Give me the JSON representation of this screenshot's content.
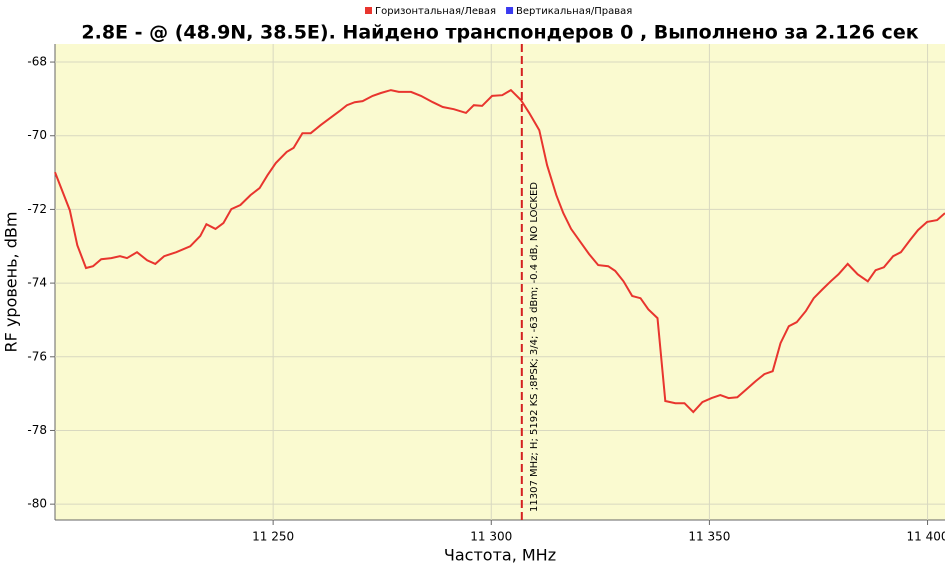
{
  "chart_data": {
    "type": "line",
    "title": "2.8E -  @  (48.9N, 38.5E). Найдено транспондеров 0 , Выполнено за 2.126 сек",
    "x_label": "Частота, MHz",
    "y_label": "RF уровень, dBm",
    "x": [
      11200,
      11203.4,
      11205.1,
      11207.1,
      11208.7,
      11210.6,
      11212.9,
      11214.9,
      11216.5,
      11218.8,
      11221.1,
      11223,
      11225,
      11227.8,
      11231,
      11233.3,
      11234.7,
      11236.8,
      11238.6,
      11240.4,
      11242.5,
      11244.8,
      11246.9,
      11248.7,
      11250.6,
      11253.1,
      11254.7,
      11256.7,
      11258.6,
      11260.9,
      11263.4,
      11265.2,
      11266.9,
      11268.7,
      11270.5,
      11272.8,
      11274.7,
      11277,
      11278.8,
      11281.6,
      11283.9,
      11286.6,
      11288.9,
      11291.4,
      11294.2,
      11296,
      11297.9,
      11300.2,
      11302.5,
      11304.5,
      11306.8,
      11308.7,
      11311,
      11312.8,
      11314.9,
      11316.5,
      11318.3,
      11320.6,
      11322.4,
      11324.5,
      11326.8,
      11328.4,
      11330.3,
      11332.3,
      11334.2,
      11336,
      11338.1,
      11339.9,
      11342.2,
      11344.3,
      11346.3,
      11348.4,
      11350.5,
      11352.5,
      11354.4,
      11356.4,
      11358.5,
      11360.6,
      11362.6,
      11364.5,
      11366.3,
      11368.2,
      11370,
      11372.1,
      11373.9,
      11376,
      11377.8,
      11379.6,
      11381.7,
      11384,
      11386.3,
      11388.1,
      11390,
      11392.1,
      11393.9,
      11396,
      11397.8,
      11399.9,
      11402.2,
      11404
    ],
    "series": [
      {
        "name": "Горизонтальная/Левая",
        "color": "#e8352e",
        "values": [
          -70.99,
          -72.02,
          -72.97,
          -73.59,
          -73.54,
          -73.35,
          -73.32,
          -73.27,
          -73.32,
          -73.16,
          -73.38,
          -73.48,
          -73.27,
          -73.16,
          -73.0,
          -72.72,
          -72.4,
          -72.53,
          -72.37,
          -71.99,
          -71.88,
          -71.61,
          -71.42,
          -71.07,
          -70.74,
          -70.44,
          -70.33,
          -69.93,
          -69.93,
          -69.71,
          -69.49,
          -69.33,
          -69.17,
          -69.09,
          -69.06,
          -68.92,
          -68.84,
          -68.76,
          -68.81,
          -68.81,
          -68.92,
          -69.09,
          -69.22,
          -69.28,
          -69.38,
          -69.17,
          -69.19,
          -68.92,
          -68.9,
          -68.76,
          -69.03,
          -69.38,
          -69.85,
          -70.8,
          -71.61,
          -72.1,
          -72.53,
          -72.91,
          -73.21,
          -73.51,
          -73.54,
          -73.67,
          -73.95,
          -74.35,
          -74.41,
          -74.71,
          -74.95,
          -77.2,
          -77.26,
          -77.26,
          -77.5,
          -77.23,
          -77.12,
          -77.04,
          -77.12,
          -77.1,
          -76.88,
          -76.66,
          -76.47,
          -76.39,
          -75.63,
          -75.17,
          -75.06,
          -74.76,
          -74.41,
          -74.16,
          -73.95,
          -73.76,
          -73.48,
          -73.76,
          -73.95,
          -73.65,
          -73.57,
          -73.27,
          -73.16,
          -72.83,
          -72.56,
          -72.34,
          -72.29,
          -72.1
        ]
      },
      {
        "name": "Вертикальная/Правая",
        "color": "#3a3af0"
      }
    ],
    "xlim": [
      11200,
      11404
    ],
    "ylim": [
      -80.43,
      -67.51
    ],
    "xticks": [
      {
        "value": 11250,
        "label": "11 250"
      },
      {
        "value": 11300,
        "label": "11 300"
      },
      {
        "value": 11350,
        "label": "11 350"
      },
      {
        "value": 11400,
        "label": "11 400"
      }
    ],
    "yticks": [
      -68,
      -70,
      -72,
      -74,
      -76,
      -78,
      -80
    ],
    "grid": true,
    "marker": {
      "x": 11307,
      "label": "11307 MHz; H; 5192 KS ;8PSK; 3/4; -63 dBm; -0.4 dB, NO LOCKED",
      "color": "#d42020"
    }
  }
}
